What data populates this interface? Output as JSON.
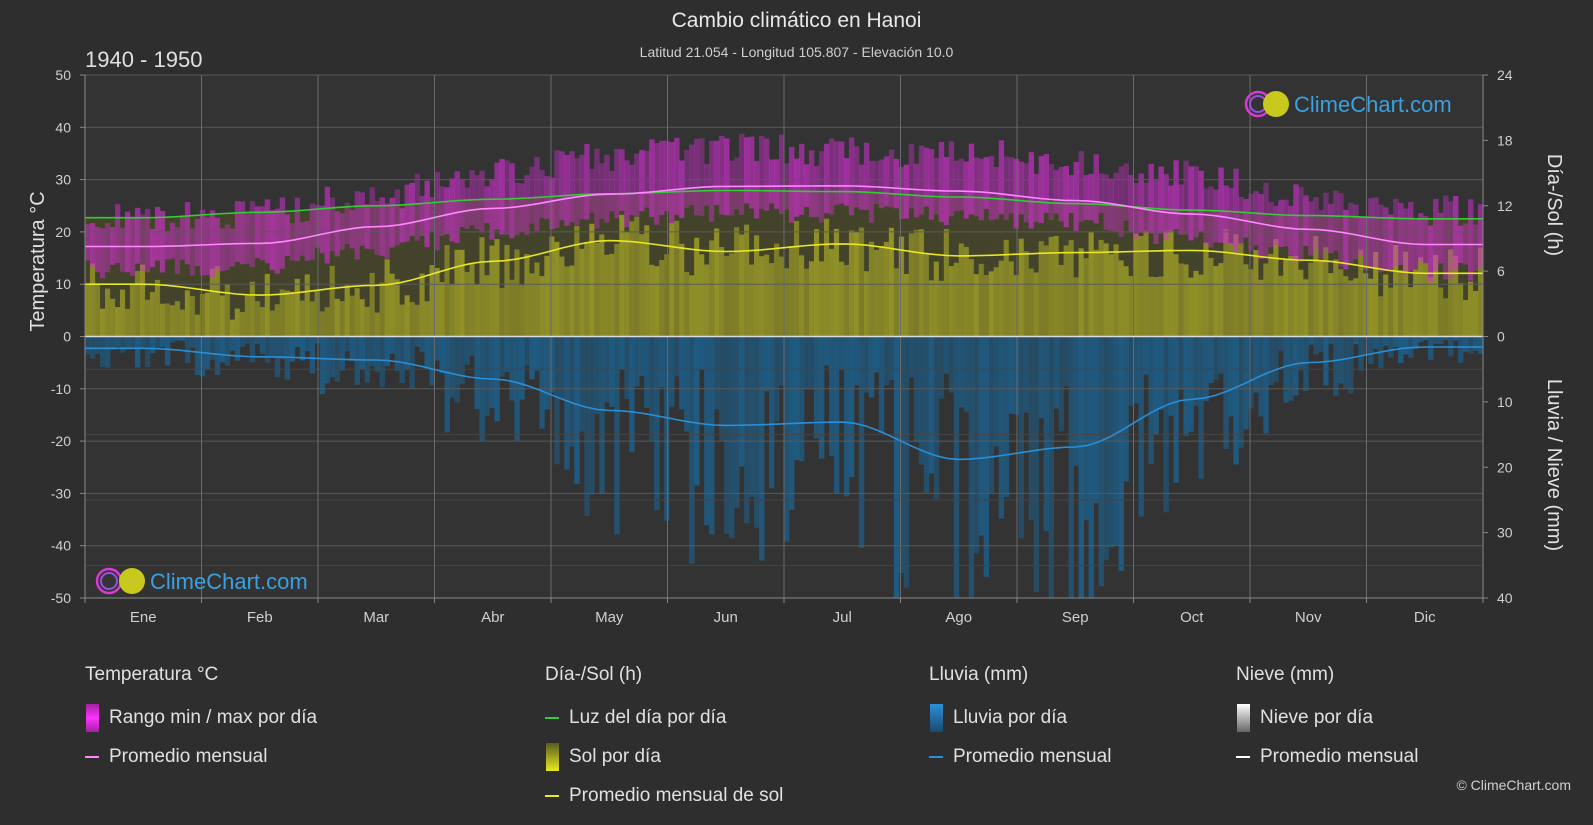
{
  "header": {
    "title": "Cambio climático en Hanoi",
    "subtitle": "Latitud 21.054 - Longitud 105.807 - Elevación 10.0",
    "period": "1940 - 1950"
  },
  "brand": {
    "text": "ClimeChart.com",
    "copyright": "© ClimeChart.com"
  },
  "legend": {
    "temperature": {
      "title": "Temperatura °C",
      "range": "Rango min / max por día",
      "avg": "Promedio mensual"
    },
    "sun": {
      "title": "Día-/Sol (h)",
      "daylight": "Luz del día por día",
      "sun": "Sol por día",
      "avg": "Promedio mensual de sol"
    },
    "rain": {
      "title": "Lluvia (mm)",
      "rain": "Lluvia por día",
      "avg": "Promedio mensual"
    },
    "snow": {
      "title": "Nieve (mm)",
      "snow": "Nieve por día",
      "avg": "Promedio mensual"
    }
  },
  "colors": {
    "temp_avg": "#ff88ff",
    "temp_range": "#d82fd8",
    "daylight": "#33cc33",
    "sun_avg": "#e8e820",
    "sun_fill": "#9a9a28",
    "rain": "#2a8fd6",
    "rain_fill": "#1d5f8a",
    "snow": "#ffffff",
    "brand": "#3aa0e0"
  },
  "chart_data": {
    "type": "line",
    "months": [
      "Ene",
      "Feb",
      "Mar",
      "Abr",
      "May",
      "Jun",
      "Jul",
      "Ago",
      "Sep",
      "Oct",
      "Nov",
      "Dic"
    ],
    "y_left": {
      "label": "Temperatura °C",
      "lim": [
        -50,
        50
      ],
      "ticks": [
        50,
        40,
        30,
        20,
        10,
        0,
        -10,
        -20,
        -30,
        -40,
        -50
      ]
    },
    "y_right_top": {
      "label": "Día-/Sol (h)",
      "lim": [
        0,
        24
      ],
      "ticks": [
        24,
        18,
        12,
        6,
        0
      ]
    },
    "y_right_bottom": {
      "label": "Lluvia / Nieve (mm)",
      "lim": [
        0,
        40
      ],
      "ticks": [
        0,
        10,
        20,
        30,
        40
      ]
    },
    "series": [
      {
        "name": "Promedio mensual",
        "key": "temp_avg",
        "unit": "°C",
        "values": [
          17.2,
          17.8,
          21.0,
          24.5,
          27.2,
          28.7,
          28.8,
          27.8,
          26.0,
          23.4,
          20.5,
          17.6
        ]
      },
      {
        "name": "Luz del día por día",
        "key": "daylight",
        "unit": "h",
        "values": [
          10.9,
          11.4,
          12.0,
          12.6,
          13.1,
          13.4,
          13.3,
          12.8,
          12.2,
          11.6,
          11.1,
          10.8
        ]
      },
      {
        "name": "Promedio mensual de sol",
        "key": "sun_avg",
        "unit": "h",
        "values": [
          4.8,
          3.8,
          4.7,
          6.9,
          8.8,
          7.8,
          8.5,
          7.4,
          7.7,
          7.9,
          7.0,
          5.8
        ]
      },
      {
        "name": "Promedio mensual",
        "key": "rain_avg",
        "unit": "mm",
        "values": [
          1.8,
          3.1,
          3.6,
          6.5,
          11.3,
          13.6,
          13.1,
          18.8,
          16.9,
          9.6,
          4.0,
          1.6
        ]
      }
    ],
    "temp_range": {
      "min": [
        15,
        15.5,
        18.5,
        22,
        24.5,
        25.5,
        25.5,
        25,
        24,
        21,
        17.5,
        14.5
      ],
      "max": [
        20,
        20.5,
        24,
        28,
        31.5,
        33,
        32.5,
        32,
        30.5,
        28,
        24,
        21
      ]
    },
    "grid": true
  }
}
